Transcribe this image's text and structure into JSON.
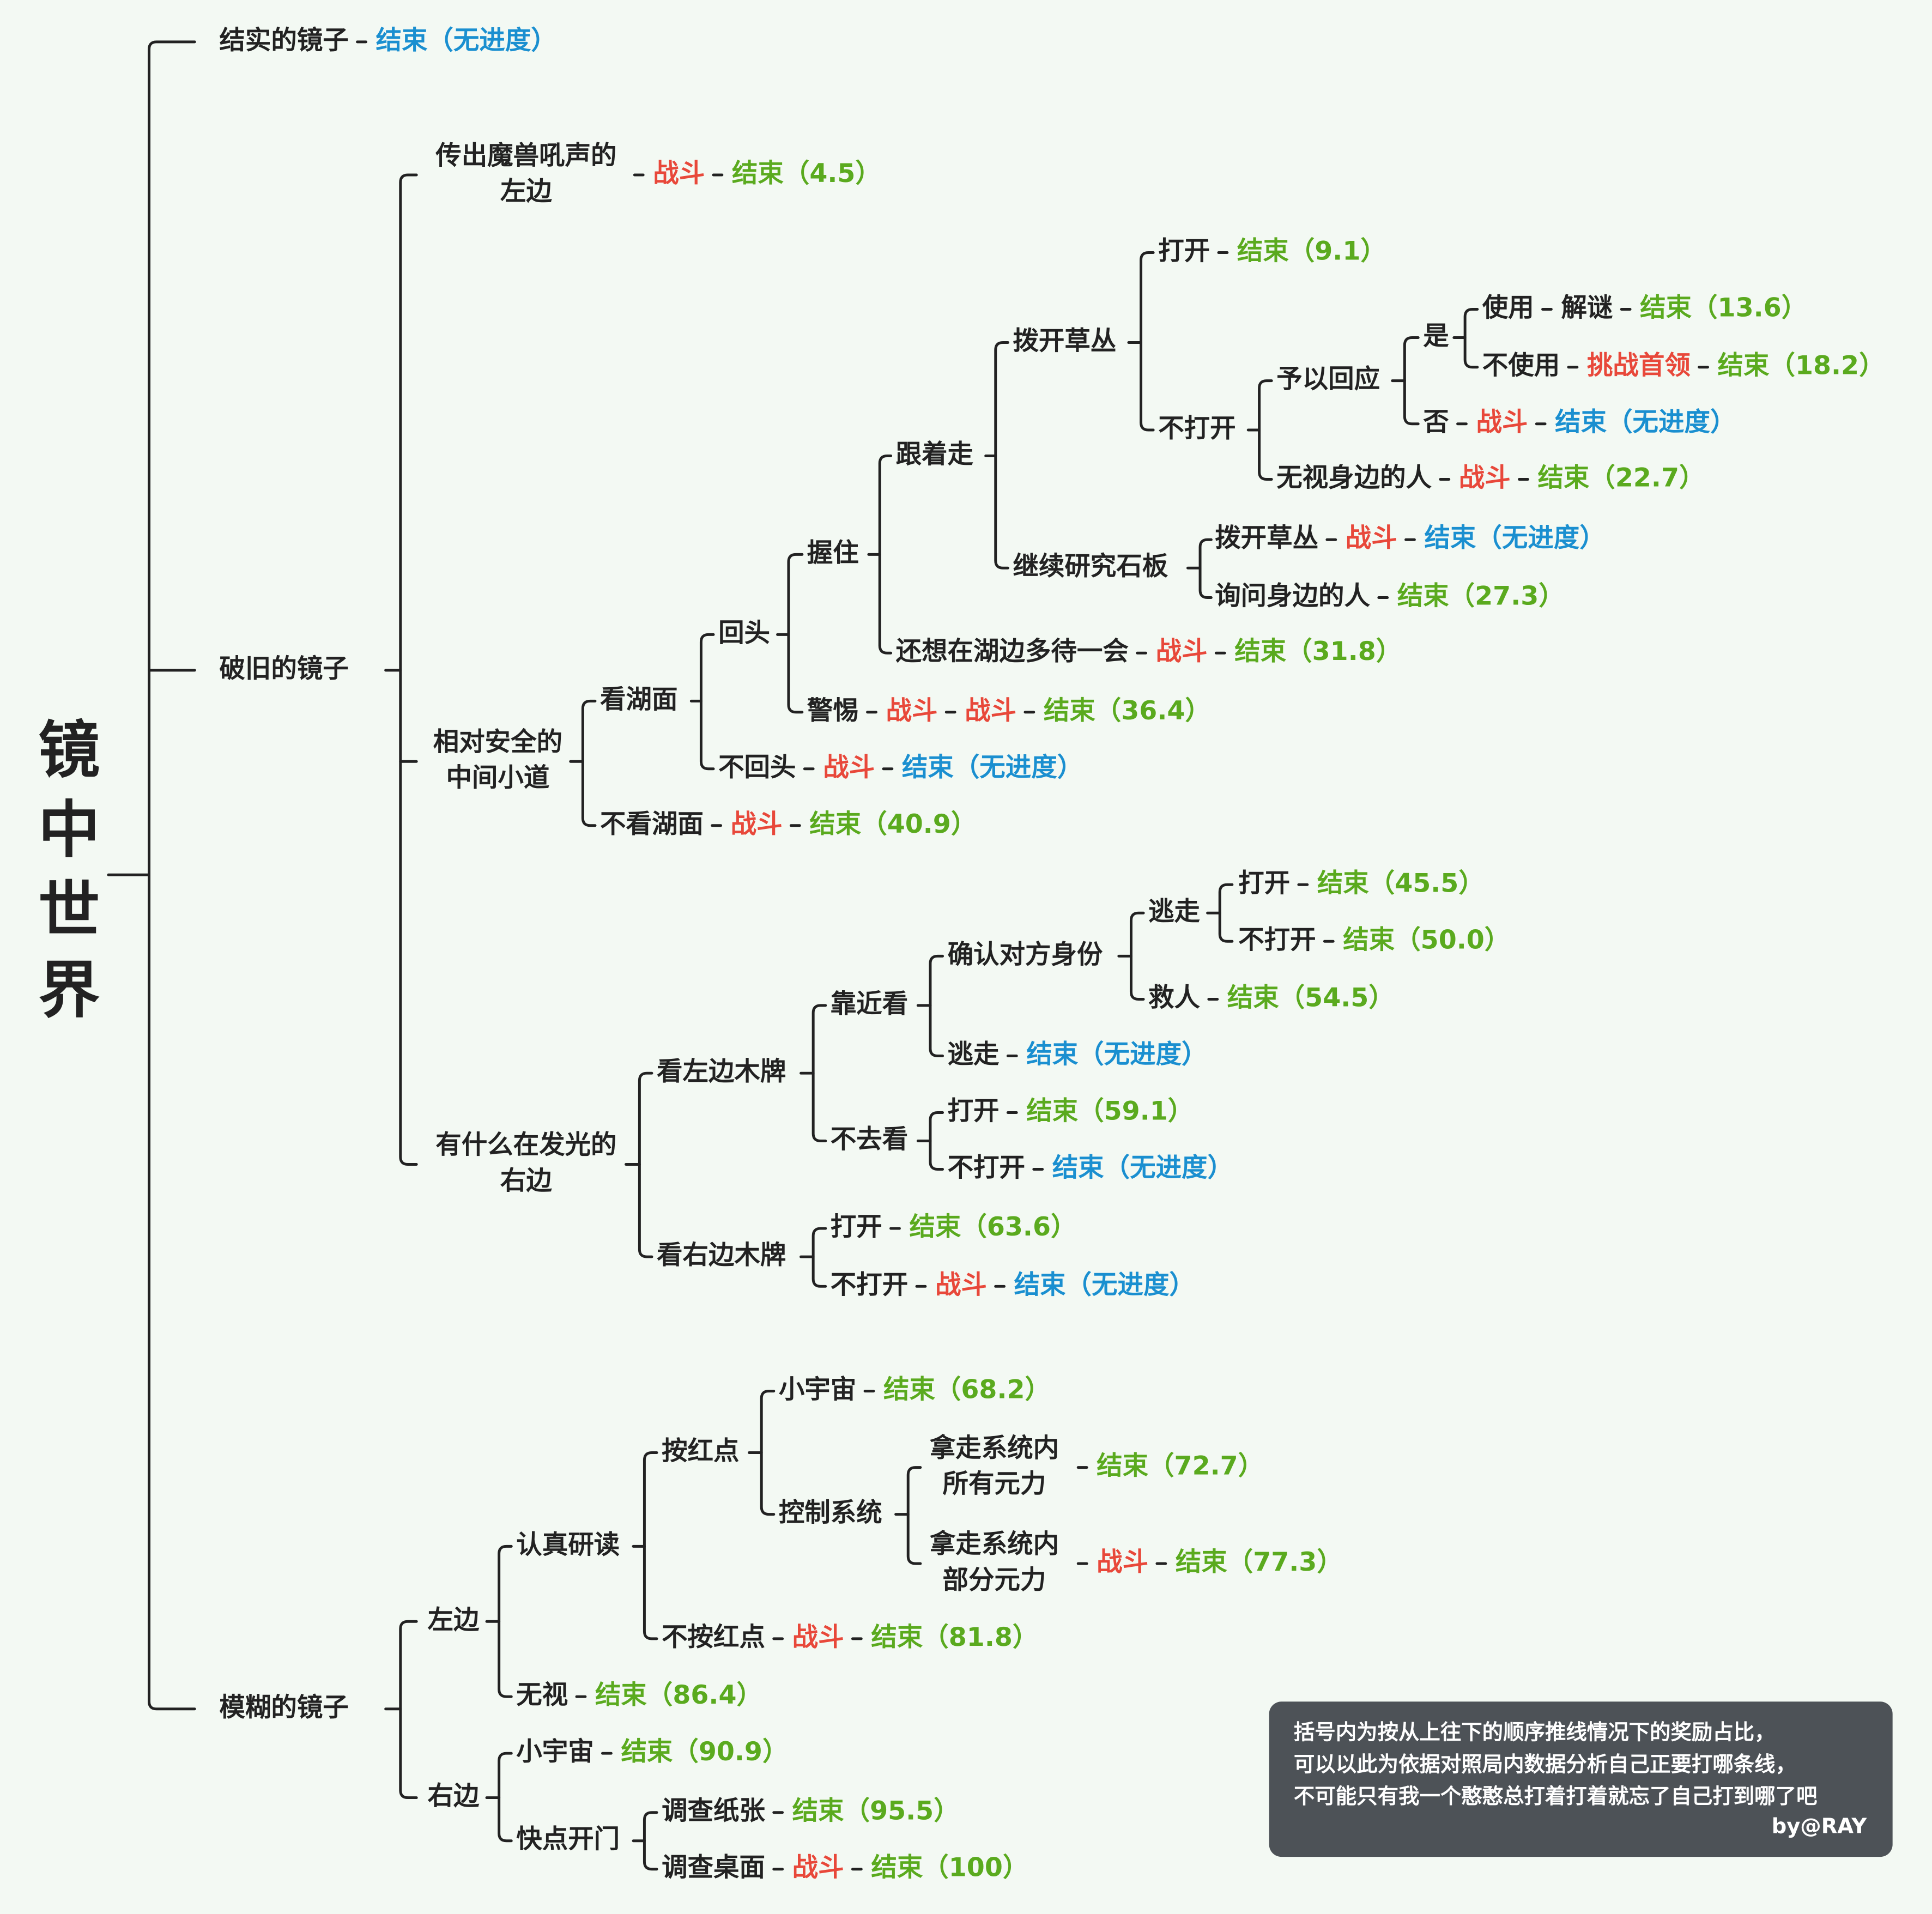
{
  "root": "镜中世界",
  "rows": [
    [
      "结实的镜子",
      "结束（无进度）"
    ],
    [
      "破旧的镜子"
    ],
    [
      "模糊的镜子"
    ],
    [
      [
        "传出魔兽吼声的",
        "左边"
      ],
      "战斗",
      "结束（4.5）"
    ],
    [
      "打开",
      "结束（9.1）"
    ],
    [
      "拨开草丛"
    ],
    [
      "是"
    ],
    [
      "使用",
      "解谜",
      "结束（13.6）"
    ],
    [
      "不使用",
      "挑战首领",
      "结束（18.2）"
    ],
    [
      "予以回应"
    ],
    [
      "不打开"
    ],
    [
      "否",
      "战斗",
      "结束（无进度）"
    ],
    [
      "无视身边的人",
      "战斗",
      "结束（22.7）"
    ],
    [
      "跟着走"
    ],
    [
      "握住"
    ],
    [
      "拨开草丛",
      "战斗",
      "结束（无进度）"
    ],
    [
      "继续研究石板"
    ],
    [
      "询问身边的人",
      "结束（27.3）"
    ],
    [
      "回头"
    ],
    [
      "还想在湖边多待一会",
      "战斗",
      "结束（31.8）"
    ],
    [
      "看湖面"
    ],
    [
      "警惕",
      "战斗",
      "战斗",
      "结束（36.4）"
    ],
    [
      [
        "相对安全的",
        "中间小道"
      ]
    ],
    [
      "不回头",
      "战斗",
      "结束（无进度）"
    ],
    [
      "不看湖面",
      "战斗",
      "结束（40.9）"
    ],
    [
      "打开",
      "结束（45.5）"
    ],
    [
      "逃走"
    ],
    [
      "不打开",
      "结束（50.0）"
    ],
    [
      "确认对方身份"
    ],
    [
      "救人",
      "结束（54.5）"
    ],
    [
      "靠近看"
    ],
    [
      "逃走",
      "结束（无进度）"
    ],
    [
      "看左边木牌"
    ],
    [
      "打开",
      "结束（59.1）"
    ],
    [
      "不去看"
    ],
    [
      [
        "有什么在发光的",
        "右边"
      ]
    ],
    [
      "不打开",
      "结束（无进度）"
    ],
    [
      "打开",
      "结束（63.6）"
    ],
    [
      "看右边木牌"
    ],
    [
      "不打开",
      "战斗",
      "结束（无进度）"
    ],
    [
      "小宇宙",
      "结束（68.2）"
    ],
    [
      "按红点"
    ],
    [
      [
        "拿走系统内",
        "所有元力"
      ],
      "结束（72.7）"
    ],
    [
      "控制系统"
    ],
    [
      "认真研读"
    ],
    [
      [
        "拿走系统内",
        "部分元力"
      ],
      "战斗",
      "结束（77.3）"
    ],
    [
      "左边"
    ],
    [
      "不按红点",
      "战斗",
      "结束（81.8）"
    ],
    [
      "无视",
      "结束（86.4）"
    ],
    [
      "小宇宙",
      "结束（90.9）"
    ],
    [
      "右边"
    ],
    [
      "调查纸张",
      "结束（95.5）"
    ],
    [
      "快点开门"
    ],
    [
      "调查桌面",
      "战斗",
      "结束（100）"
    ]
  ],
  "note": {
    "lines": [
      "括号内为按从上往下的顺序推线情况下的奖励占比，",
      "可以以此为依据对照局内数据分析自己正要打哪条线，",
      "不可能只有我一个憨憨总打着打着就忘了自己打到哪了吧"
    ],
    "signature": "by@RAY"
  }
}
